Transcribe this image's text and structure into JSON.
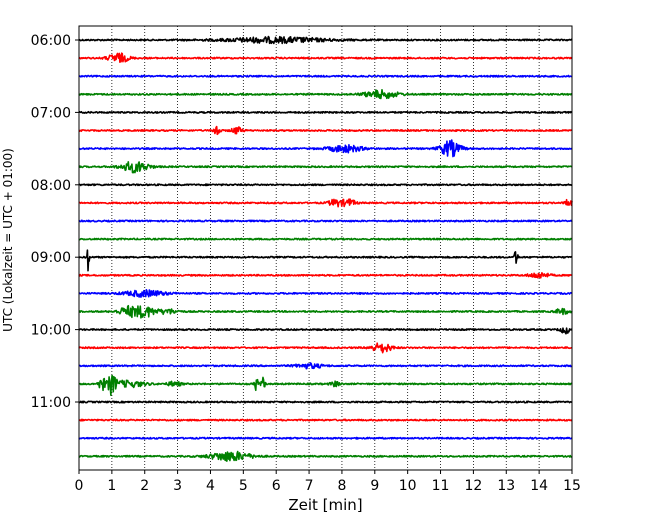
{
  "chart_data": {
    "type": "line",
    "title": "",
    "xlabel": "Zeit  [min]",
    "ylabel": "UTC (Lokalzeit = UTC + 01:00)",
    "xlim": [
      0,
      15
    ],
    "x_ticks": [
      0,
      1,
      2,
      3,
      4,
      5,
      6,
      7,
      8,
      9,
      10,
      11,
      12,
      13,
      14,
      15
    ],
    "y_tick_labels": [
      "06:00",
      "07:00",
      "08:00",
      "09:00",
      "10:00",
      "11:00"
    ],
    "grid": "vertical dotted",
    "trace_colors": [
      "#000000",
      "#ff0000",
      "#0000ff",
      "#008000"
    ],
    "traces": [
      {
        "time": "06:00",
        "events": [
          [
            6,
            0.35,
            1.5
          ]
        ]
      },
      {
        "time": "06:15",
        "events": [
          [
            1.2,
            0.6,
            0.3
          ]
        ]
      },
      {
        "time": "06:30",
        "events": []
      },
      {
        "time": "06:45",
        "events": [
          [
            9.2,
            0.5,
            0.5
          ]
        ]
      },
      {
        "time": "07:00",
        "events": []
      },
      {
        "time": "07:15",
        "events": [
          [
            4.2,
            1.0,
            0.08
          ],
          [
            4.8,
            0.45,
            0.15
          ]
        ]
      },
      {
        "time": "07:30",
        "events": [
          [
            8.1,
            0.45,
            0.5
          ],
          [
            11.3,
            1.0,
            0.3
          ]
        ]
      },
      {
        "time": "07:45",
        "events": [
          [
            1.7,
            0.7,
            0.4
          ]
        ]
      },
      {
        "time": "08:00",
        "events": []
      },
      {
        "time": "08:15",
        "events": [
          [
            7.8,
            0.45,
            0.2
          ],
          [
            8.2,
            0.45,
            0.2
          ],
          [
            14.9,
            0.5,
            0.1
          ]
        ]
      },
      {
        "time": "08:30",
        "events": []
      },
      {
        "time": "08:45",
        "events": []
      },
      {
        "time": "09:00",
        "events": [
          [
            0.28,
            1.8,
            0.04
          ],
          [
            13.3,
            1.5,
            0.04
          ]
        ]
      },
      {
        "time": "09:15",
        "events": [
          [
            14,
            0.35,
            0.3
          ]
        ]
      },
      {
        "time": "09:30",
        "events": [
          [
            2,
            0.4,
            0.6
          ]
        ]
      },
      {
        "time": "09:45",
        "events": [
          [
            1.5,
            0.6,
            0.3
          ],
          [
            2,
            0.7,
            0.3
          ],
          [
            2.7,
            0.3,
            0.3
          ],
          [
            14.7,
            0.35,
            0.2
          ]
        ]
      },
      {
        "time": "10:00",
        "events": [
          [
            14.8,
            0.45,
            0.15
          ]
        ]
      },
      {
        "time": "10:15",
        "events": [
          [
            9.2,
            0.6,
            0.3
          ]
        ]
      },
      {
        "time": "10:30",
        "events": [
          [
            7,
            0.3,
            0.4
          ]
        ]
      },
      {
        "time": "10:45",
        "events": [
          [
            0.7,
            0.8,
            0.1
          ],
          [
            1.0,
            1.3,
            0.12
          ],
          [
            1.5,
            0.4,
            0.5
          ],
          [
            2.9,
            0.3,
            0.2
          ],
          [
            5.4,
            1.0,
            0.05
          ],
          [
            5.6,
            1.0,
            0.05
          ],
          [
            7.8,
            0.3,
            0.15
          ]
        ]
      },
      {
        "time": "11:00",
        "events": []
      },
      {
        "time": "11:15",
        "events": []
      },
      {
        "time": "11:30",
        "events": []
      },
      {
        "time": "11:45",
        "events": [
          [
            4.6,
            0.6,
            0.6
          ]
        ]
      }
    ]
  }
}
